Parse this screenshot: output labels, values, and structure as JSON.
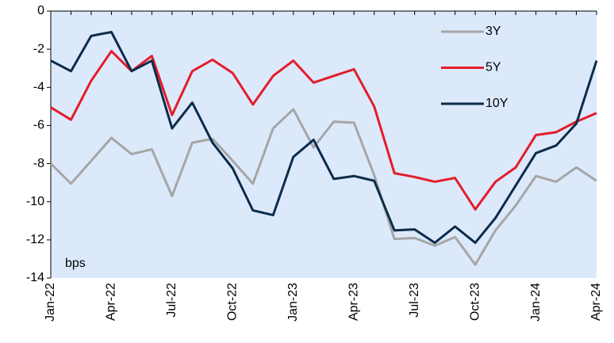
{
  "chart_data": {
    "type": "line",
    "categories": [
      "Jan-22",
      null,
      null,
      "Apr-22",
      null,
      null,
      "Jul-22",
      null,
      null,
      "Oct-22",
      null,
      null,
      "Jan-23",
      null,
      null,
      "Apr-23",
      null,
      null,
      "Jul-23",
      null,
      null,
      "Oct-23",
      null,
      null,
      "Jan-24",
      null,
      null,
      "Apr-24"
    ],
    "series": [
      {
        "name": "3Y",
        "color": "#a6a6a6",
        "values": [
          -8.0,
          -9.05,
          -7.85,
          -6.65,
          -7.5,
          -7.25,
          -9.7,
          -6.9,
          -6.7,
          -7.85,
          -9.05,
          -6.15,
          -5.15,
          -7.15,
          -5.8,
          -5.85,
          -8.6,
          -11.95,
          -11.9,
          -12.3,
          -11.85,
          -13.3,
          -11.5,
          -10.2,
          -8.65,
          -8.95,
          -8.2,
          -8.9
        ]
      },
      {
        "name": "5Y",
        "color": "#e31d2b",
        "values": [
          -5.05,
          -5.7,
          -3.65,
          -2.1,
          -3.15,
          -2.35,
          -5.45,
          -3.15,
          -2.55,
          -3.25,
          -4.9,
          -3.4,
          -2.6,
          -3.75,
          -3.4,
          -3.05,
          -5.0,
          -8.5,
          -8.7,
          -8.95,
          -8.75,
          -10.4,
          -8.95,
          -8.2,
          -6.5,
          -6.35,
          -5.8,
          -5.35
        ]
      },
      {
        "name": "10Y",
        "color": "#0b2c4a",
        "values": [
          -2.6,
          -3.15,
          -1.3,
          -1.1,
          -3.15,
          -2.6,
          -6.15,
          -4.8,
          -6.9,
          -8.25,
          -10.45,
          -10.7,
          -7.65,
          -6.75,
          -8.8,
          -8.65,
          -8.9,
          -11.5,
          -11.45,
          -12.15,
          -11.3,
          -12.15,
          -10.85,
          -9.15,
          -7.45,
          -7.05,
          -5.9,
          -2.6
        ]
      }
    ],
    "ylim": [
      -14,
      0
    ],
    "yticks": [
      0,
      -2,
      -4,
      -6,
      -8,
      -10,
      -12,
      -14
    ],
    "annotation": "bps",
    "legend": "top-right",
    "grid": false,
    "background": "#dce9fb"
  }
}
